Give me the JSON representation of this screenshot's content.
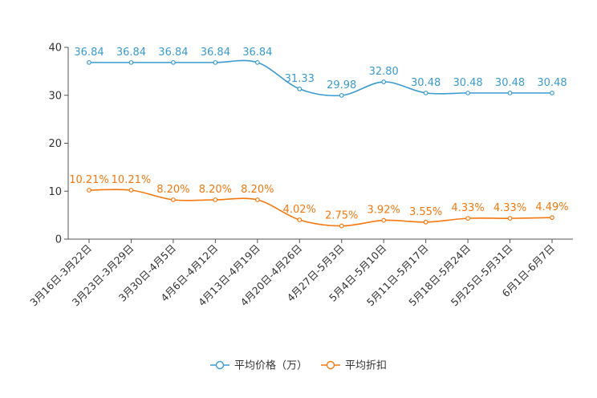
{
  "chart_data": {
    "type": "line",
    "title": "",
    "xlabel": "",
    "ylabel": "",
    "ylim": [
      0,
      40
    ],
    "yticks": [
      0,
      10,
      20,
      30,
      40
    ],
    "categories": [
      "3月16日-3月22日",
      "3月23日-3月29日",
      "3月30日-4月5日",
      "4月6日-4月12日",
      "4月13日-4月19日",
      "4月20日-4月26日",
      "4月27日-5月3日",
      "5月4日-5月10日",
      "5月11日-5月17日",
      "5月18日-5月24日",
      "5月25日-5月31日",
      "6月1日-6月7日"
    ],
    "series": [
      {
        "name": "平均价格（万）",
        "color": "#3a9bd0",
        "values": [
          36.84,
          36.84,
          36.84,
          36.84,
          36.84,
          31.33,
          29.98,
          32.8,
          30.48,
          30.48,
          30.48,
          30.48
        ],
        "labels": [
          "36.84",
          "36.84",
          "36.84",
          "36.84",
          "36.84",
          "31.33",
          "29.98",
          "32.80",
          "30.48",
          "30.48",
          "30.48",
          "30.48"
        ]
      },
      {
        "name": "平均折扣",
        "color": "#f5780f",
        "values": [
          10.21,
          10.21,
          8.2,
          8.2,
          8.2,
          4.02,
          2.75,
          3.92,
          3.55,
          4.33,
          4.33,
          4.49
        ],
        "labels": [
          "10.21%",
          "10.21%",
          "8.20%",
          "8.20%",
          "8.20%",
          "4.02%",
          "2.75%",
          "3.92%",
          "3.55%",
          "4.33%",
          "4.33%",
          "4.49%"
        ]
      }
    ],
    "legend": "bottom"
  }
}
